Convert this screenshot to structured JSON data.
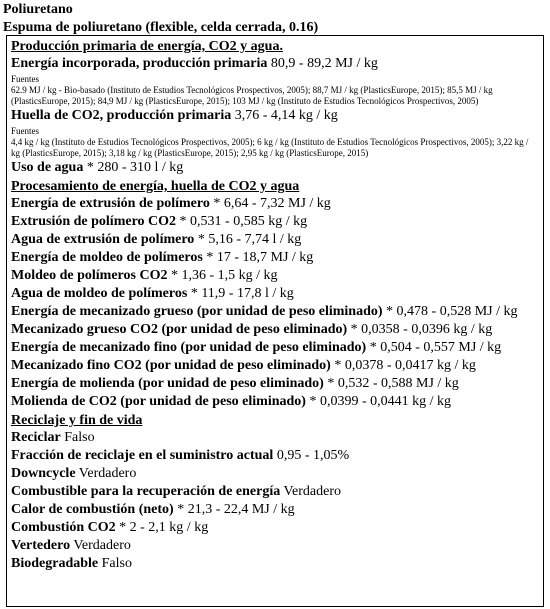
{
  "header": {
    "material": "Poliuretano",
    "variant": "Espuma de poliuretano (flexible, celda cerrada, 0.16)"
  },
  "energy_section": {
    "title": "Producción primaria de energía, CO2 y agua.",
    "embodied": {
      "label": "Energía incorporada, producción primaria",
      "value": " 80,9 - 89,2 MJ / kg"
    },
    "embodied_sources_label": "Fuentes",
    "embodied_sources": "62.9 MJ / kg - Bio-basado (Instituto de Estudios Tecnológicos Prospectivos, 2005); 88,7 MJ / kg (PlasticsEurope, 2015); 85,5 MJ / kg (PlasticsEurope, 2015); 84,9 MJ / kg (PlasticsEurope, 2015); 103 MJ / kg (Instituto de Estudios Tecnológicos Prospectivos, 2005)",
    "co2": {
      "label": "Huella de CO2, producción primaria",
      "value": " 3,76 - 4,14 kg / kg"
    },
    "co2_sources_label": "Fuentes",
    "co2_sources": "4,4 kg / kg (Instituto de Estudios Tecnológicos Prospectivos, 2005); 6 kg / kg (Instituto de Estudios Tecnológicos Prospectivos, 2005); 3,22 kg / kg (PlasticsEurope, 2015); 3,18 kg / kg (PlasticsEurope, 2015); 2,95 kg / kg (PlasticsEurope, 2015)",
    "water": {
      "label": "Uso de agua",
      "value": " * 280 - 310 l / kg"
    }
  },
  "processing_section": {
    "title": "Procesamiento de energía, huella de CO2 y agua",
    "rows": [
      {
        "label": "Energía de extrusión de polímero",
        "value": " * 6,64 - 7,32 MJ / kg"
      },
      {
        "label": "Extrusión de polímero CO2",
        "value": " * 0,531 - 0,585 kg / kg"
      },
      {
        "label": "Agua de extrusión de polímero",
        "value": " * 5,16 - 7,74 l / kg"
      },
      {
        "label": "Energía de moldeo de polímeros",
        "value": " * 17 - 18,7 MJ / kg"
      },
      {
        "label": "Moldeo de polímeros CO2",
        "value": " * 1,36 - 1,5 kg / kg"
      },
      {
        "label": "Agua de moldeo de polímeros",
        "value": " * 11,9 - 17,8 l / kg"
      },
      {
        "label": "Energía de mecanizado grueso (por unidad de peso eliminado)",
        "value": " * 0,478 - 0,528 MJ / kg"
      },
      {
        "label": "Mecanizado grueso CO2 (por unidad de peso eliminado)",
        "value": " * 0,0358 - 0,0396 kg / kg"
      },
      {
        "label": "Energía de mecanizado fino (por unidad de peso eliminado)",
        "value": " * 0,504 - 0,557 MJ / kg"
      },
      {
        "label": "Mecanizado fino CO2 (por unidad de peso eliminado)",
        "value": " * 0,0378 - 0,0417 kg / kg"
      },
      {
        "label": "Energía de molienda (por unidad de peso eliminado)",
        "value": " * 0,532 - 0,588 MJ / kg"
      },
      {
        "label": "Molienda de CO2 (por unidad de peso eliminado)",
        "value": " * 0,0399 - 0,0441 kg / kg"
      }
    ]
  },
  "recycling_section": {
    "title": "Reciclaje y fin de vida",
    "rows": [
      {
        "label": "Reciclar",
        "value": " Falso"
      },
      {
        "label": "Fracción de reciclaje en el suministro actual",
        "value": " 0,95 - 1,05%"
      },
      {
        "label": "Downcycle",
        "value": " Verdadero"
      },
      {
        "label": "Combustible para la recuperación de energía",
        "value": " Verdadero"
      },
      {
        "label": "Calor de combustión (neto)",
        "value": " * 21,3 - 22,4 MJ / kg"
      },
      {
        "label": "Combustión CO2",
        "value": " * 2 - 2,1 kg / kg"
      },
      {
        "label": "Vertedero",
        "value": " Verdadero"
      },
      {
        "label": "Biodegradable",
        "value": " Falso"
      }
    ]
  }
}
